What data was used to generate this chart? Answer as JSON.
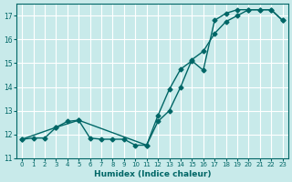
{
  "xlabel": "Humidex (Indice chaleur)",
  "bg_color": "#c8eaea",
  "grid_color": "#ffffff",
  "line_color": "#006666",
  "xlim": [
    -0.5,
    23.5
  ],
  "ylim": [
    11.0,
    17.5
  ],
  "yticks": [
    11,
    12,
    13,
    14,
    15,
    16,
    17
  ],
  "xticks": [
    0,
    1,
    2,
    3,
    4,
    5,
    6,
    7,
    8,
    9,
    10,
    11,
    12,
    13,
    14,
    15,
    16,
    17,
    18,
    19,
    20,
    21,
    22,
    23
  ],
  "line1_x": [
    0,
    1,
    2,
    3,
    4,
    5,
    6,
    7,
    8,
    9,
    10,
    11,
    12,
    13,
    14,
    15,
    16,
    17,
    18,
    19,
    20,
    21,
    22,
    23
  ],
  "line1_y": [
    11.8,
    11.85,
    11.85,
    12.3,
    12.55,
    12.6,
    11.85,
    11.8,
    11.8,
    11.8,
    11.55,
    11.55,
    12.8,
    13.9,
    14.75,
    15.1,
    14.7,
    16.8,
    17.1,
    17.25,
    17.25,
    17.25,
    17.25,
    16.8
  ],
  "line2_x": [
    0,
    3,
    5,
    11,
    12,
    13,
    14,
    15,
    16,
    17,
    18,
    19,
    20,
    21,
    22,
    23
  ],
  "line2_y": [
    11.8,
    12.3,
    12.6,
    11.55,
    12.55,
    13.0,
    14.0,
    15.15,
    15.5,
    16.25,
    16.75,
    17.0,
    17.25,
    17.25,
    17.25,
    16.8
  ]
}
